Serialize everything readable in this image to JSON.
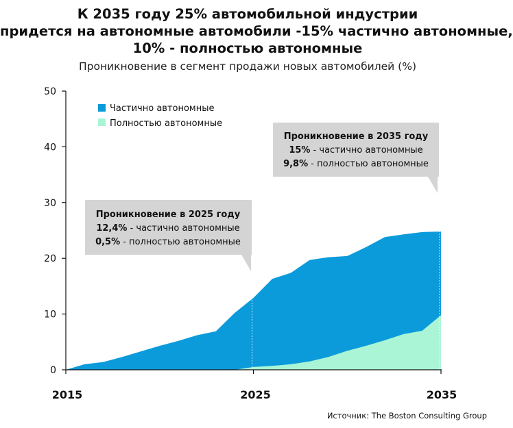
{
  "title": {
    "line1": "К 2035 году 25% автомобильной индустрии",
    "line2": "придется на автономные автомобили -15% частично автономные,",
    "line3": "10% - полностью автономные"
  },
  "subtitle": "Проникновение в сегмент продажи новых автомобилей (%)",
  "source": "Источник: The Boston Consulting Group",
  "colors": {
    "partial": "#0b9bdb",
    "full": "#a9f5d5",
    "callout_bg": "#d4d4d4",
    "axis": "#111111"
  },
  "legend": {
    "partial_label": "Частично автономные",
    "full_label": "Полностью автономные"
  },
  "callouts": {
    "c2025": {
      "heading": "Проникновение в 2025 году",
      "line1_value": "12,4%",
      "line1_text": " - частично автономные",
      "line2_value": "0,5%",
      "line2_text": " - полностью автономные"
    },
    "c2035": {
      "heading": "Проникновение в 2035 году",
      "line1_value": "15%",
      "line1_text": " - частично автономные",
      "line2_value": "9,8%",
      "line2_text": " - полностью автономные"
    }
  },
  "chart_data": {
    "type": "area",
    "stacked": true,
    "title": "К 2035 году 25% автомобильной индустрии придется на автономные автомобили -15% частично автономные, 10% - полностью автономные",
    "subtitle": "Проникновение в сегмент продажи новых автомобилей (%)",
    "xlim": [
      2015,
      2035
    ],
    "ylim": [
      0,
      50
    ],
    "x_ticks": [
      2015,
      2025,
      2035
    ],
    "y_ticks": [
      0,
      10,
      20,
      30,
      40,
      50
    ],
    "grid": false,
    "legend_position": "top-left",
    "x": [
      2015,
      2016,
      2016.5,
      2017,
      2018,
      2019,
      2020,
      2021,
      2022,
      2023,
      2024,
      2025,
      2026,
      2027,
      2028,
      2029,
      2030,
      2031,
      2032,
      2033,
      2034,
      2035
    ],
    "series": [
      {
        "name": "Полностью автономные",
        "values": [
          0,
          0,
          0,
          0,
          0,
          0,
          0,
          0,
          0,
          0,
          0,
          0.5,
          0.7,
          1.0,
          1.5,
          2.3,
          3.4,
          4.3,
          5.3,
          6.4,
          7.0,
          9.8
        ]
      },
      {
        "name": "Частично автономные",
        "values": [
          0,
          1.0,
          1.2,
          1.4,
          2.3,
          3.3,
          4.3,
          5.2,
          6.2,
          6.9,
          10.2,
          12.4,
          15.6,
          16.4,
          18.2,
          17.9,
          17.0,
          17.7,
          18.5,
          17.9,
          17.7,
          15.0
        ]
      }
    ],
    "annotations": [
      {
        "x": 2025,
        "heading": "Проникновение в 2025 году",
        "lines": [
          "12,4% - частично автономные",
          "0,5% - полностью автономные"
        ]
      },
      {
        "x": 2035,
        "heading": "Проникновение в 2035 году",
        "lines": [
          "15% - частично автономные",
          "9,8% - полностью автономные"
        ]
      }
    ]
  }
}
